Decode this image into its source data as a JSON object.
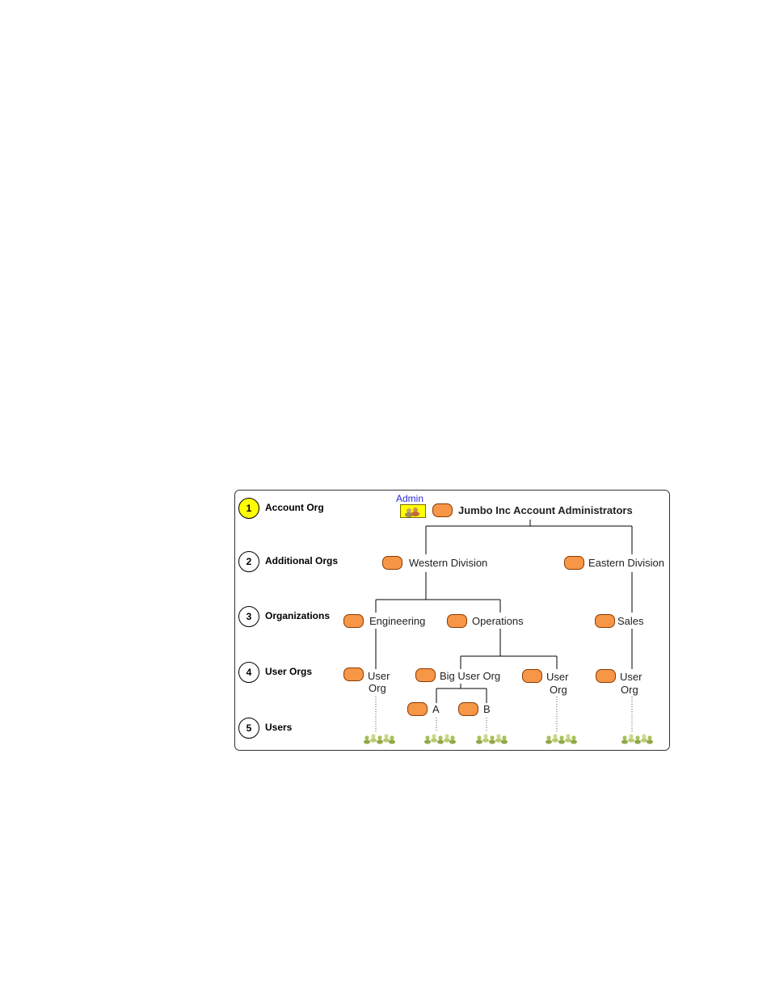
{
  "levels": [
    {
      "num": "1",
      "label": "Account Org"
    },
    {
      "num": "2",
      "label": "Additional Orgs"
    },
    {
      "num": "3",
      "label": "Organizations"
    },
    {
      "num": "4",
      "label": "User Orgs"
    },
    {
      "num": "5",
      "label": "Users"
    }
  ],
  "admin_label": "Admin",
  "nodes": {
    "account": "Jumbo Inc Account Administrators",
    "western": "Western Division",
    "eastern": "Eastern Division",
    "engineering": "Engineering",
    "operations": "Operations",
    "sales": "Sales",
    "userorg1_l1": "User",
    "userorg1_l2": "Org",
    "bigorg": "Big User Org",
    "userorg3_l1": "User",
    "userorg3_l2": "Org",
    "userorg4_l1": "User",
    "userorg4_l2": "Org",
    "a": "A",
    "b": "B"
  },
  "colors": {
    "org_fill": "#f79646",
    "active_level": "#ffff00",
    "admin_text": "#2a2ad8",
    "user_icon": "#b5cc6a"
  }
}
